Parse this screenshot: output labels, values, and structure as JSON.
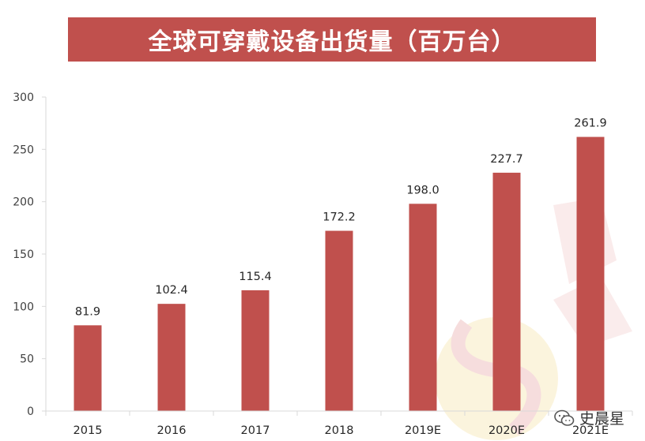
{
  "chart_data": {
    "type": "bar",
    "title": "全球可穿戴设备出货量（百万台）",
    "categories": [
      "2015",
      "2016",
      "2017",
      "2018",
      "2019E",
      "2020E",
      "2021E"
    ],
    "values": [
      81.9,
      102.4,
      115.4,
      172.2,
      198.0,
      227.7,
      261.9
    ],
    "value_labels": [
      "81.9",
      "102.4",
      "115.4",
      "172.2",
      "198.0",
      "227.7",
      "261.9"
    ],
    "yticks": [
      "0",
      "50",
      "100",
      "150",
      "200",
      "250",
      "300"
    ],
    "ylim": [
      0,
      300
    ],
    "grid": false,
    "legend": "none",
    "bar_color": "#c0504d",
    "title_bg": "#c0504d",
    "axis_color": "#d9d9d9"
  },
  "watermark": {
    "text": "史晨星",
    "icon": "wechat-icon"
  }
}
